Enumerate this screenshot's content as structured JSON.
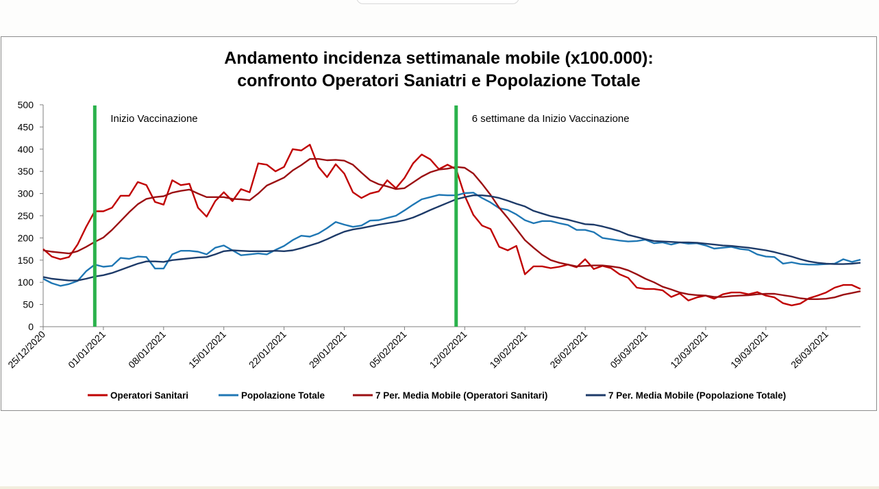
{
  "chart_data": {
    "type": "line",
    "title_line1": "Andamento incidenza settimanale mobile (x100.000):",
    "title_line2": "confronto Operatori Saniatri e Popolazione Totale",
    "xlabel": "",
    "ylabel": "",
    "ylim": [
      0,
      500
    ],
    "yticks": [
      0,
      50,
      100,
      150,
      200,
      250,
      300,
      350,
      400,
      450,
      500
    ],
    "x_start": "25/12/2020",
    "x_end": "30/03/2021",
    "xtick_labels": [
      "25/12/2020",
      "01/01/2021",
      "08/01/2021",
      "15/01/2021",
      "22/01/2021",
      "29/01/2021",
      "05/02/2021",
      "12/02/2021",
      "19/02/2021",
      "26/02/2021",
      "05/03/2021",
      "12/03/2021",
      "19/03/2021",
      "26/03/2021"
    ],
    "grid": false,
    "legend_position": "bottom",
    "annotations": [
      {
        "text": "Inizio Vaccinazione",
        "at": "31/12/2020"
      },
      {
        "text": "6 settimane da Inizio Vaccinazione",
        "at": "11/02/2021"
      }
    ],
    "series": [
      {
        "name": "Operatori Sanitari",
        "color": "#c00000",
        "values": [
          175,
          158,
          152,
          157,
          185,
          225,
          260,
          260,
          268,
          295,
          295,
          326,
          319,
          281,
          275,
          330,
          319,
          322,
          268,
          248,
          283,
          303,
          283,
          310,
          303,
          368,
          365,
          350,
          360,
          400,
          397,
          410,
          360,
          337,
          366,
          345,
          303,
          290,
          300,
          305,
          330,
          312,
          335,
          368,
          388,
          377,
          355,
          365,
          355,
          295,
          252,
          228,
          220,
          180,
          172,
          182,
          118,
          136,
          136,
          132,
          135,
          140,
          134,
          152,
          130,
          137,
          132,
          118,
          110,
          88,
          85,
          85,
          82,
          67,
          75,
          59,
          66,
          70,
          63,
          73,
          77,
          77,
          73,
          78,
          70,
          66,
          53,
          48,
          52,
          64,
          70,
          77,
          88,
          94,
          94,
          85
        ]
      },
      {
        "name": "Popolazione Totale",
        "color": "#1f77b4",
        "values": [
          108,
          98,
          92,
          96,
          103,
          125,
          140,
          135,
          137,
          155,
          153,
          158,
          157,
          131,
          131,
          163,
          171,
          171,
          169,
          163,
          178,
          183,
          172,
          161,
          163,
          165,
          163,
          173,
          182,
          195,
          205,
          203,
          210,
          222,
          236,
          230,
          225,
          228,
          239,
          240,
          245,
          250,
          262,
          275,
          287,
          292,
          297,
          296,
          296,
          301,
          302,
          290,
          280,
          267,
          263,
          253,
          240,
          233,
          238,
          238,
          233,
          229,
          218,
          218,
          213,
          200,
          197,
          194,
          192,
          193,
          196,
          188,
          190,
          185,
          190,
          187,
          188,
          183,
          176,
          178,
          180,
          175,
          173,
          163,
          158,
          157,
          142,
          145,
          141,
          140,
          140,
          141,
          142,
          152,
          146,
          151
        ]
      },
      {
        "name": "7 Per. Media Mobile (Operatori Sanitari)",
        "color": "#9b0f12",
        "values": [
          172,
          169,
          167,
          165,
          170,
          180,
          191,
          201,
          218,
          238,
          258,
          276,
          288,
          292,
          294,
          302,
          306,
          309,
          300,
          292,
          292,
          292,
          288,
          287,
          285,
          300,
          318,
          327,
          336,
          352,
          364,
          378,
          378,
          375,
          376,
          374,
          365,
          347,
          330,
          321,
          316,
          310,
          312,
          325,
          338,
          348,
          354,
          356,
          360,
          358,
          345,
          322,
          297,
          268,
          245,
          220,
          195,
          178,
          162,
          150,
          144,
          140,
          136,
          137,
          138,
          138,
          136,
          133,
          127,
          118,
          108,
          100,
          90,
          84,
          77,
          73,
          71,
          70,
          67,
          67,
          69,
          70,
          71,
          73,
          74,
          74,
          71,
          68,
          64,
          62,
          62,
          63,
          66,
          72,
          76,
          80
        ]
      },
      {
        "name": "7 Per. Media Mobile (Popolazione Totale)",
        "color": "#1d3a68",
        "values": [
          112,
          108,
          106,
          104,
          104,
          108,
          113,
          116,
          121,
          128,
          135,
          142,
          147,
          147,
          146,
          150,
          152,
          154,
          156,
          157,
          163,
          170,
          172,
          171,
          170,
          170,
          170,
          171,
          170,
          172,
          177,
          183,
          189,
          197,
          206,
          214,
          219,
          222,
          226,
          230,
          233,
          236,
          240,
          246,
          254,
          263,
          271,
          279,
          287,
          292,
          296,
          296,
          294,
          290,
          284,
          277,
          271,
          261,
          255,
          249,
          245,
          241,
          236,
          231,
          230,
          226,
          221,
          215,
          207,
          202,
          197,
          193,
          192,
          191,
          190,
          190,
          189,
          187,
          185,
          183,
          182,
          180,
          178,
          175,
          172,
          168,
          163,
          158,
          152,
          147,
          144,
          142,
          141,
          141,
          142,
          144
        ]
      }
    ]
  }
}
